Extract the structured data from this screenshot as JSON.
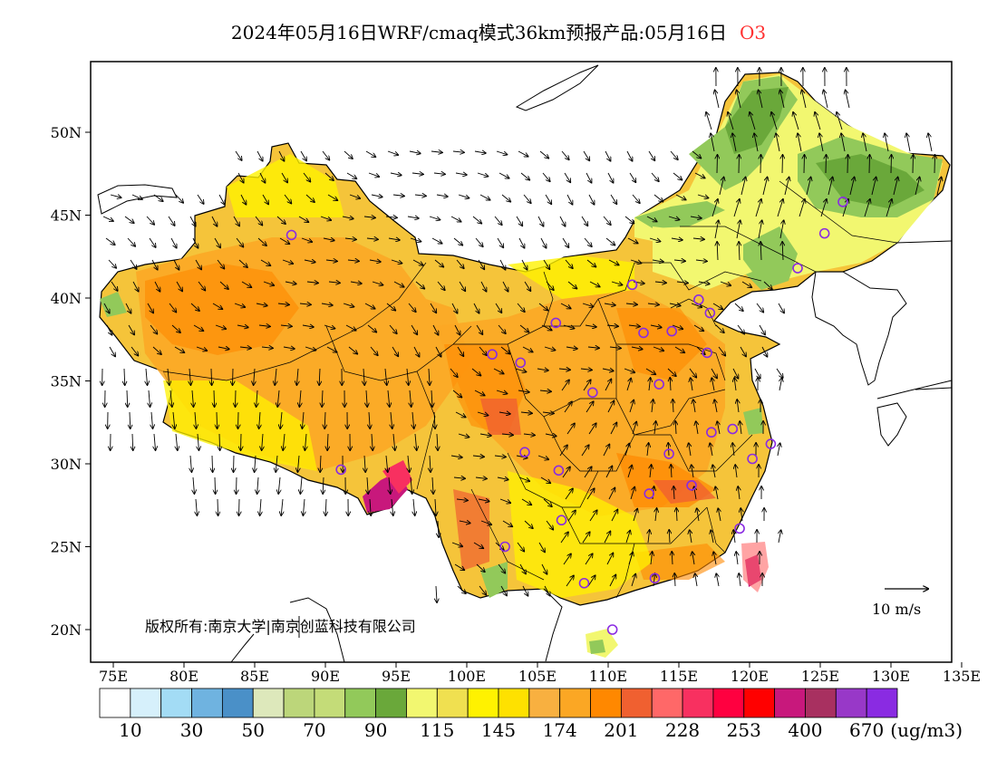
{
  "title": {
    "text": "2024年05月16日WRF/cmaq模式36km预报产品:05月16日",
    "species": "O3"
  },
  "map": {
    "lon_ticks": [
      "75E",
      "80E",
      "85E",
      "90E",
      "95E",
      "100E",
      "105E",
      "110E",
      "115E",
      "120E",
      "125E",
      "130E",
      "135E"
    ],
    "lat_ticks": [
      "20N",
      "25N",
      "30N",
      "35N",
      "40N",
      "45N",
      "50N"
    ],
    "copyright": "版权所有:南京大学|南京创蓝科技有限公司",
    "vector_ref_label": "10 m/s"
  },
  "legend": {
    "colors": [
      "#ffffff",
      "#d6f0fb",
      "#a3dcf5",
      "#6fb3e0",
      "#4a90c8",
      "#dde8bb",
      "#bcd67a",
      "#c4dc78",
      "#92c95a",
      "#6aa83a",
      "#f2f770",
      "#f0e050",
      "#fff200",
      "#fee100",
      "#f8b040",
      "#fba724",
      "#ff8800",
      "#f06030",
      "#ff6868",
      "#f83060",
      "#ff0040",
      "#ff0000",
      "#c8187c",
      "#a83060",
      "#9838c8",
      "#8a2be2"
    ],
    "labels": [
      "10",
      "30",
      "50",
      "70",
      "90",
      "115",
      "145",
      "174",
      "201",
      "228",
      "253",
      "400",
      "670"
    ],
    "unit": "(ug/m3)"
  },
  "stations": [
    [
      87.6,
      43.8
    ],
    [
      91.1,
      29.65
    ],
    [
      101.8,
      36.6
    ],
    [
      103.8,
      36.1
    ],
    [
      106.3,
      38.5
    ],
    [
      108.9,
      34.3
    ],
    [
      111.7,
      40.8
    ],
    [
      112.5,
      37.9
    ],
    [
      114.5,
      38.0
    ],
    [
      116.4,
      39.9
    ],
    [
      117.2,
      39.1
    ],
    [
      117.0,
      36.7
    ],
    [
      113.6,
      34.8
    ],
    [
      117.3,
      31.9
    ],
    [
      118.8,
      32.1
    ],
    [
      120.2,
      30.3
    ],
    [
      121.5,
      31.2
    ],
    [
      114.3,
      30.6
    ],
    [
      112.9,
      28.2
    ],
    [
      115.9,
      28.7
    ],
    [
      119.3,
      26.1
    ],
    [
      113.3,
      23.1
    ],
    [
      108.3,
      22.8
    ],
    [
      110.3,
      20.0
    ],
    [
      102.7,
      25.0
    ],
    [
      106.7,
      26.6
    ],
    [
      104.1,
      30.7
    ],
    [
      106.5,
      29.6
    ],
    [
      123.4,
      41.8
    ],
    [
      125.3,
      43.9
    ],
    [
      126.6,
      45.8
    ]
  ]
}
